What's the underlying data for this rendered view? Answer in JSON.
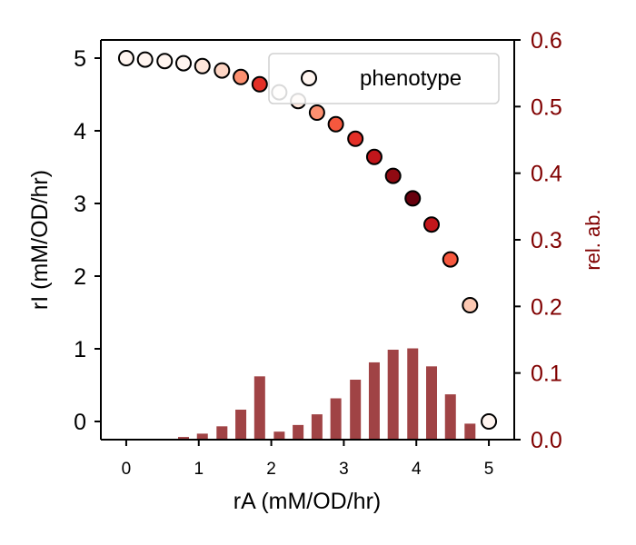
{
  "chart_data": {
    "type": "scatter",
    "xlabel": "rA (mM/OD/hr)",
    "ylabel": "rI (mM/OD/hr)",
    "y2label": "rel. ab.",
    "xlim": [
      -0.35,
      5.35
    ],
    "ylim": [
      -0.25,
      5.25
    ],
    "y2lim": [
      0,
      0.6
    ],
    "xticks": [
      "0",
      "1",
      "2",
      "3",
      "4",
      "5"
    ],
    "yticks": [
      "0",
      "1",
      "2",
      "3",
      "4",
      "5"
    ],
    "y2ticks": [
      "0.0",
      "0.1",
      "0.2",
      "0.3",
      "0.4",
      "0.5",
      "0.6"
    ],
    "legend": {
      "label": "phenotype",
      "placement": "upper-right"
    },
    "colors": {
      "bar": "#a04345",
      "axis_right": "#800000",
      "marker_edge": "#000000"
    },
    "series": [
      {
        "type": "scatter",
        "points": [
          {
            "x": 0.0,
            "y": 5.0,
            "color": "#fff5f0"
          },
          {
            "x": 0.26,
            "y": 4.98,
            "color": "#fff5f0"
          },
          {
            "x": 0.53,
            "y": 4.96,
            "color": "#fff5f0"
          },
          {
            "x": 0.79,
            "y": 4.93,
            "color": "#fff5f0"
          },
          {
            "x": 1.05,
            "y": 4.89,
            "color": "#fee6da"
          },
          {
            "x": 1.32,
            "y": 4.83,
            "color": "#fdd5c4"
          },
          {
            "x": 1.58,
            "y": 4.74,
            "color": "#fc9070"
          },
          {
            "x": 1.84,
            "y": 4.64,
            "color": "#e32f27"
          },
          {
            "x": 2.11,
            "y": 4.53,
            "color": "#fff5f0"
          },
          {
            "x": 2.37,
            "y": 4.41,
            "color": "#fee7dc"
          },
          {
            "x": 2.63,
            "y": 4.25,
            "color": "#fc9070"
          },
          {
            "x": 2.89,
            "y": 4.09,
            "color": "#f6583e"
          },
          {
            "x": 3.16,
            "y": 3.89,
            "color": "#e32f27"
          },
          {
            "x": 3.42,
            "y": 3.64,
            "color": "#c2161b"
          },
          {
            "x": 3.68,
            "y": 3.38,
            "color": "#900a12"
          },
          {
            "x": 3.95,
            "y": 3.07,
            "color": "#67000d"
          },
          {
            "x": 4.21,
            "y": 2.71,
            "color": "#c2161b"
          },
          {
            "x": 4.47,
            "y": 2.23,
            "color": "#f6583e"
          },
          {
            "x": 4.74,
            "y": 1.6,
            "color": "#fdc9b3"
          },
          {
            "x": 5.0,
            "y": 0.0,
            "color": "#fff5f0"
          }
        ]
      },
      {
        "type": "bar",
        "axis": "right",
        "x": [
          0.0,
          0.26,
          0.53,
          0.79,
          1.05,
          1.32,
          1.58,
          1.84,
          2.11,
          2.37,
          2.63,
          2.89,
          3.16,
          3.42,
          3.68,
          3.95,
          4.21,
          4.47,
          4.74,
          5.0
        ],
        "values": [
          0.0,
          0.0,
          0.0,
          0.004,
          0.009,
          0.02,
          0.045,
          0.095,
          0.012,
          0.022,
          0.038,
          0.062,
          0.09,
          0.116,
          0.135,
          0.137,
          0.11,
          0.068,
          0.024,
          0.0
        ]
      }
    ]
  }
}
